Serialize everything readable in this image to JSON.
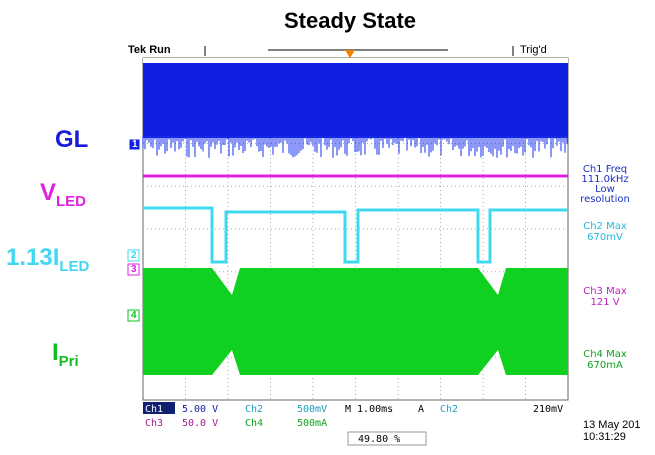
{
  "title": "Steady State",
  "labels": {
    "gl": "GL",
    "vled": {
      "main": "V",
      "sub": "LED"
    },
    "iled": {
      "main": "1.13I",
      "sub": "LED"
    },
    "ipri": {
      "main": "I",
      "sub": "Pri"
    }
  },
  "scope": {
    "status": "Tek Run",
    "trigger": "Trig'd",
    "markers": [
      "1",
      "2",
      "3",
      "4"
    ],
    "measurements": [
      [
        "Ch1 Freq",
        "111.0kHz",
        "Low",
        "resolution"
      ],
      [
        "Ch2 Max",
        "670mV"
      ],
      [
        "Ch3 Max",
        "121 V"
      ],
      [
        "Ch4 Max",
        "670mA"
      ]
    ],
    "row1": [
      "Ch1",
      "5.00 V",
      "Ch2",
      "500mV",
      "M 1.00ms",
      "A",
      "Ch2",
      "210mV"
    ],
    "row2": [
      "Ch3",
      "50.0 V",
      "Ch4",
      "500mA"
    ],
    "trigger_position": "49.80 %",
    "date": "13 May 201",
    "time": "10:31:29"
  }
}
